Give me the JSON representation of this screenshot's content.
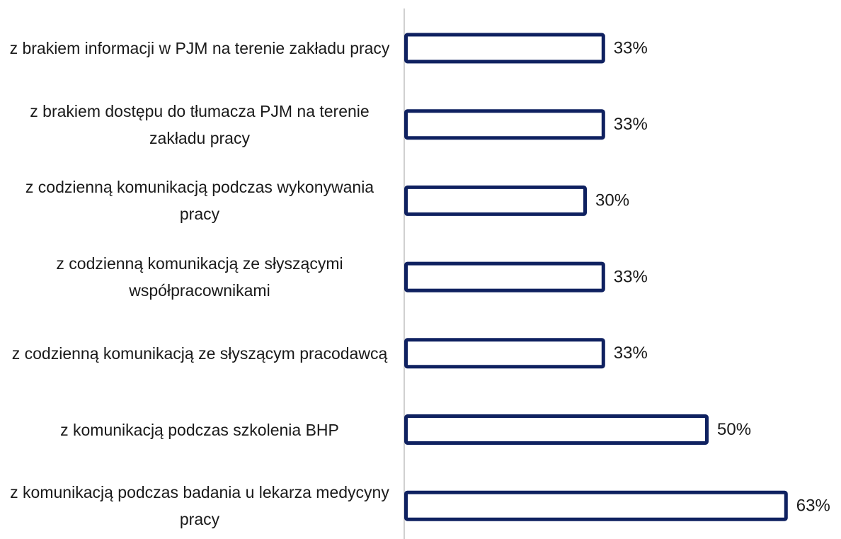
{
  "chart_data": {
    "type": "bar",
    "orientation": "horizontal",
    "categories": [
      "z brakiem informacji w PJM na terenie zakładu pracy",
      "z brakiem dostępu do tłumacza PJM na terenie zakładu pracy",
      "z codzienną komunikacją podczas wykonywania pracy",
      "z codzienną komunikacją ze słyszącymi współpracownikami",
      "z codzienną komunikacją ze słyszącym pracodawcą",
      "z komunikacją podczas szkolenia BHP",
      "z komunikacją podczas badania u lekarza medycyny pracy"
    ],
    "values": [
      33,
      33,
      30,
      33,
      33,
      50,
      63
    ],
    "value_labels": [
      "33%",
      "33%",
      "30%",
      "33%",
      "33%",
      "50%",
      "63%"
    ],
    "color": "#0f2160"
  }
}
